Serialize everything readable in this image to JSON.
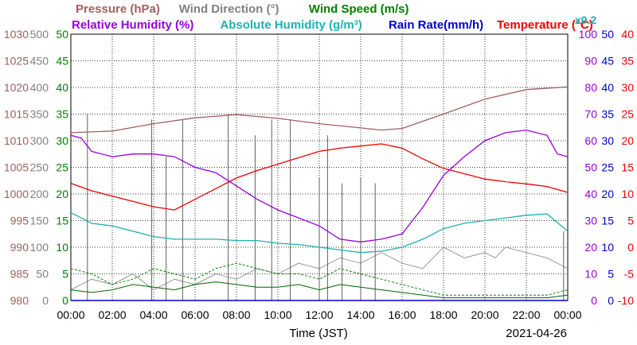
{
  "header": {
    "row1": [
      {
        "text": "Pressure (hPa)",
        "color": "#a06060"
      },
      {
        "text": "Wind Direction (°)",
        "color": "#808080"
      },
      {
        "text": "Wind Speed (m/s)",
        "color": "#008000"
      }
    ],
    "row2": [
      {
        "text": "Relative Humidity (%)",
        "color": "#9900dd"
      },
      {
        "text": "Absolute Humidity (g/m³)",
        "color": "#20b0b0"
      },
      {
        "text": "Rain Rate(mm/h)",
        "color": "#0000cc"
      },
      {
        "text": "Temperature (°C)",
        "color": "#ee0000"
      },
      {
        "text": "x0.2",
        "color": "#20b0b0"
      }
    ]
  },
  "footer": {
    "xlabel": "Time (JST)",
    "date": "2021-04-26"
  },
  "chart_data": {
    "type": "line",
    "x_ticks": [
      "00:00",
      "02:00",
      "04:00",
      "06:00",
      "08:00",
      "10:00",
      "12:00",
      "14:00",
      "16:00",
      "18:00",
      "20:00",
      "22:00",
      "00:00"
    ],
    "x_range_hours": [
      0,
      24
    ],
    "axes": {
      "pressure": {
        "label": "Pressure (hPa)",
        "range": [
          980,
          1030
        ],
        "ticks": [
          "1030",
          "1025",
          "1020",
          "1015",
          "1010",
          "1005",
          "1000",
          "995",
          "990",
          "985",
          "980"
        ],
        "color": "#a06060"
      },
      "wind_direction": {
        "label": "Wind Direction (°)",
        "range": [
          0,
          500
        ],
        "ticks": [
          "500",
          "450",
          "400",
          "350",
          "300",
          "250",
          "200",
          "150",
          "100",
          "50",
          "0"
        ],
        "color": "#808080"
      },
      "wind_speed": {
        "label": "Wind Speed (m/s)",
        "range": [
          0,
          50
        ],
        "ticks": [
          "50",
          "45",
          "40",
          "35",
          "30",
          "25",
          "20",
          "15",
          "10",
          "5",
          "0"
        ],
        "color": "#008000"
      },
      "humidity": {
        "label": "Relative Humidity (%)",
        "range": [
          0,
          100
        ],
        "ticks": [
          "100",
          "90",
          "80",
          "70",
          "60",
          "50",
          "40",
          "30",
          "20",
          "10",
          "0"
        ],
        "color": "#9900dd"
      },
      "rain": {
        "label": "Rain Rate(mm/h)",
        "range": [
          0,
          50
        ],
        "ticks": [
          "50",
          "45",
          "40",
          "35",
          "30",
          "25",
          "20",
          "15",
          "10",
          "5",
          "0"
        ],
        "color": "#0000cc"
      },
      "temperature": {
        "label": "Temperature (°C)",
        "range": [
          -10,
          40
        ],
        "ticks": [
          "40",
          "35",
          "30",
          "25",
          "20",
          "15",
          "10",
          "5",
          "0",
          "-5",
          "-10"
        ],
        "color": "#ee0000"
      }
    },
    "grid": true,
    "series": [
      {
        "name": "Pressure (hPa)",
        "axis": "pressure",
        "color": "#a06060",
        "points": [
          [
            0,
            1011.5
          ],
          [
            2,
            1011.8
          ],
          [
            4,
            1013.2
          ],
          [
            6,
            1014.3
          ],
          [
            8,
            1014.9
          ],
          [
            10,
            1014.2
          ],
          [
            12,
            1013.2
          ],
          [
            14,
            1012.4
          ],
          [
            15,
            1012.0
          ],
          [
            16,
            1012.3
          ],
          [
            18,
            1015.0
          ],
          [
            20,
            1017.8
          ],
          [
            22,
            1019.6
          ],
          [
            24,
            1020.1
          ]
        ]
      },
      {
        "name": "Temperature (°C)",
        "axis": "temperature",
        "color": "#ee0000",
        "points": [
          [
            0,
            12.0
          ],
          [
            1,
            10.6
          ],
          [
            2,
            9.6
          ],
          [
            3,
            8.6
          ],
          [
            4,
            7.6
          ],
          [
            5,
            7.0
          ],
          [
            6,
            9.0
          ],
          [
            7,
            11.0
          ],
          [
            8,
            13.0
          ],
          [
            9,
            14.4
          ],
          [
            10,
            15.6
          ],
          [
            11,
            16.8
          ],
          [
            12,
            18.0
          ],
          [
            13,
            18.6
          ],
          [
            14,
            19.0
          ],
          [
            15,
            19.4
          ],
          [
            16,
            18.6
          ],
          [
            17,
            16.6
          ],
          [
            18,
            14.8
          ],
          [
            19,
            13.8
          ],
          [
            20,
            12.8
          ],
          [
            21,
            12.3
          ],
          [
            22,
            11.9
          ],
          [
            23,
            11.4
          ],
          [
            24,
            10.3
          ]
        ]
      },
      {
        "name": "Relative Humidity (%)",
        "axis": "humidity",
        "color": "#9900dd",
        "points": [
          [
            0,
            62
          ],
          [
            0.5,
            61
          ],
          [
            1,
            56
          ],
          [
            2,
            54
          ],
          [
            3,
            55
          ],
          [
            4,
            55
          ],
          [
            5,
            54
          ],
          [
            6,
            50
          ],
          [
            7,
            48
          ],
          [
            8,
            43
          ],
          [
            9,
            38
          ],
          [
            10,
            34
          ],
          [
            11,
            31
          ],
          [
            12,
            28
          ],
          [
            13,
            23
          ],
          [
            14,
            22
          ],
          [
            15,
            23
          ],
          [
            16,
            25
          ],
          [
            17,
            35
          ],
          [
            18,
            47
          ],
          [
            19,
            54
          ],
          [
            20,
            60
          ],
          [
            21,
            63
          ],
          [
            22,
            64
          ],
          [
            23,
            62
          ],
          [
            23.5,
            55
          ],
          [
            24,
            54
          ]
        ]
      },
      {
        "name": "Absolute Humidity (g/m³)",
        "axis": "humidity",
        "color": "#20b0b0",
        "points": [
          [
            0,
            33
          ],
          [
            1,
            29
          ],
          [
            2,
            28
          ],
          [
            3,
            26
          ],
          [
            4,
            24
          ],
          [
            5,
            23
          ],
          [
            6,
            23
          ],
          [
            7,
            23
          ],
          [
            8,
            22.5
          ],
          [
            9,
            22.5
          ],
          [
            10,
            21.5
          ],
          [
            11,
            21
          ],
          [
            12,
            20
          ],
          [
            13,
            19
          ],
          [
            14,
            18
          ],
          [
            15,
            18.5
          ],
          [
            16,
            20
          ],
          [
            17,
            23
          ],
          [
            18,
            27
          ],
          [
            19,
            29
          ],
          [
            20,
            30
          ],
          [
            21,
            31
          ],
          [
            22,
            32
          ],
          [
            23,
            32.5
          ],
          [
            24,
            26
          ]
        ]
      }
    ],
    "wind_direction_spikes": [
      [
        0.8,
        350
      ],
      [
        3.9,
        340
      ],
      [
        4.6,
        270
      ],
      [
        5.4,
        340
      ],
      [
        7.6,
        350
      ],
      [
        8.9,
        310
      ],
      [
        9.7,
        340
      ],
      [
        10.6,
        340
      ],
      [
        12.0,
        230
      ],
      [
        12.4,
        310
      ],
      [
        13.1,
        220
      ],
      [
        14.0,
        230
      ],
      [
        14.7,
        220
      ],
      [
        23.8,
        130
      ]
    ],
    "wind_direction_baseline": [
      [
        0,
        20
      ],
      [
        1,
        40
      ],
      [
        2,
        30
      ],
      [
        3,
        50
      ],
      [
        4,
        20
      ],
      [
        5,
        40
      ],
      [
        6,
        30
      ],
      [
        7,
        50
      ],
      [
        8,
        40
      ],
      [
        9,
        60
      ],
      [
        10,
        50
      ],
      [
        11,
        70
      ],
      [
        12,
        60
      ],
      [
        13,
        80
      ],
      [
        14,
        70
      ],
      [
        15,
        90
      ],
      [
        16,
        70
      ],
      [
        17,
        60
      ],
      [
        17.5,
        80
      ],
      [
        18,
        100
      ],
      [
        19,
        80
      ],
      [
        20,
        90
      ],
      [
        20.5,
        80
      ],
      [
        21,
        100
      ],
      [
        22,
        90
      ],
      [
        23,
        80
      ],
      [
        24,
        60
      ]
    ],
    "wind_speed_dashed": [
      [
        0,
        6
      ],
      [
        1,
        5
      ],
      [
        2,
        3
      ],
      [
        3,
        4
      ],
      [
        4,
        6
      ],
      [
        5,
        5
      ],
      [
        6,
        4
      ],
      [
        7,
        6
      ],
      [
        8,
        7
      ],
      [
        9,
        6
      ],
      [
        10,
        5
      ],
      [
        11,
        5
      ],
      [
        12,
        4
      ],
      [
        13,
        6
      ],
      [
        14,
        5
      ],
      [
        15,
        4
      ],
      [
        16,
        3
      ],
      [
        17,
        2
      ],
      [
        18,
        1
      ],
      [
        19,
        1
      ],
      [
        20,
        1
      ],
      [
        21,
        1
      ],
      [
        22,
        1
      ],
      [
        23,
        1
      ],
      [
        24,
        2
      ]
    ],
    "wind_speed_solid": [
      [
        0,
        2
      ],
      [
        1,
        1.5
      ],
      [
        2,
        2
      ],
      [
        3,
        3
      ],
      [
        4,
        2.5
      ],
      [
        5,
        2
      ],
      [
        6,
        3
      ],
      [
        7,
        3.5
      ],
      [
        8,
        3
      ],
      [
        9,
        2.5
      ],
      [
        10,
        2.5
      ],
      [
        11,
        3
      ],
      [
        12,
        2
      ],
      [
        13,
        3
      ],
      [
        14,
        2.5
      ],
      [
        15,
        2
      ],
      [
        16,
        1.5
      ],
      [
        17,
        1
      ],
      [
        18,
        0.5
      ],
      [
        19,
        0.5
      ],
      [
        20,
        0.5
      ],
      [
        21,
        0.5
      ],
      [
        22,
        0.5
      ],
      [
        23,
        0.5
      ],
      [
        24,
        1
      ]
    ],
    "rain_rate": [
      [
        0,
        0
      ],
      [
        24,
        0
      ]
    ]
  }
}
